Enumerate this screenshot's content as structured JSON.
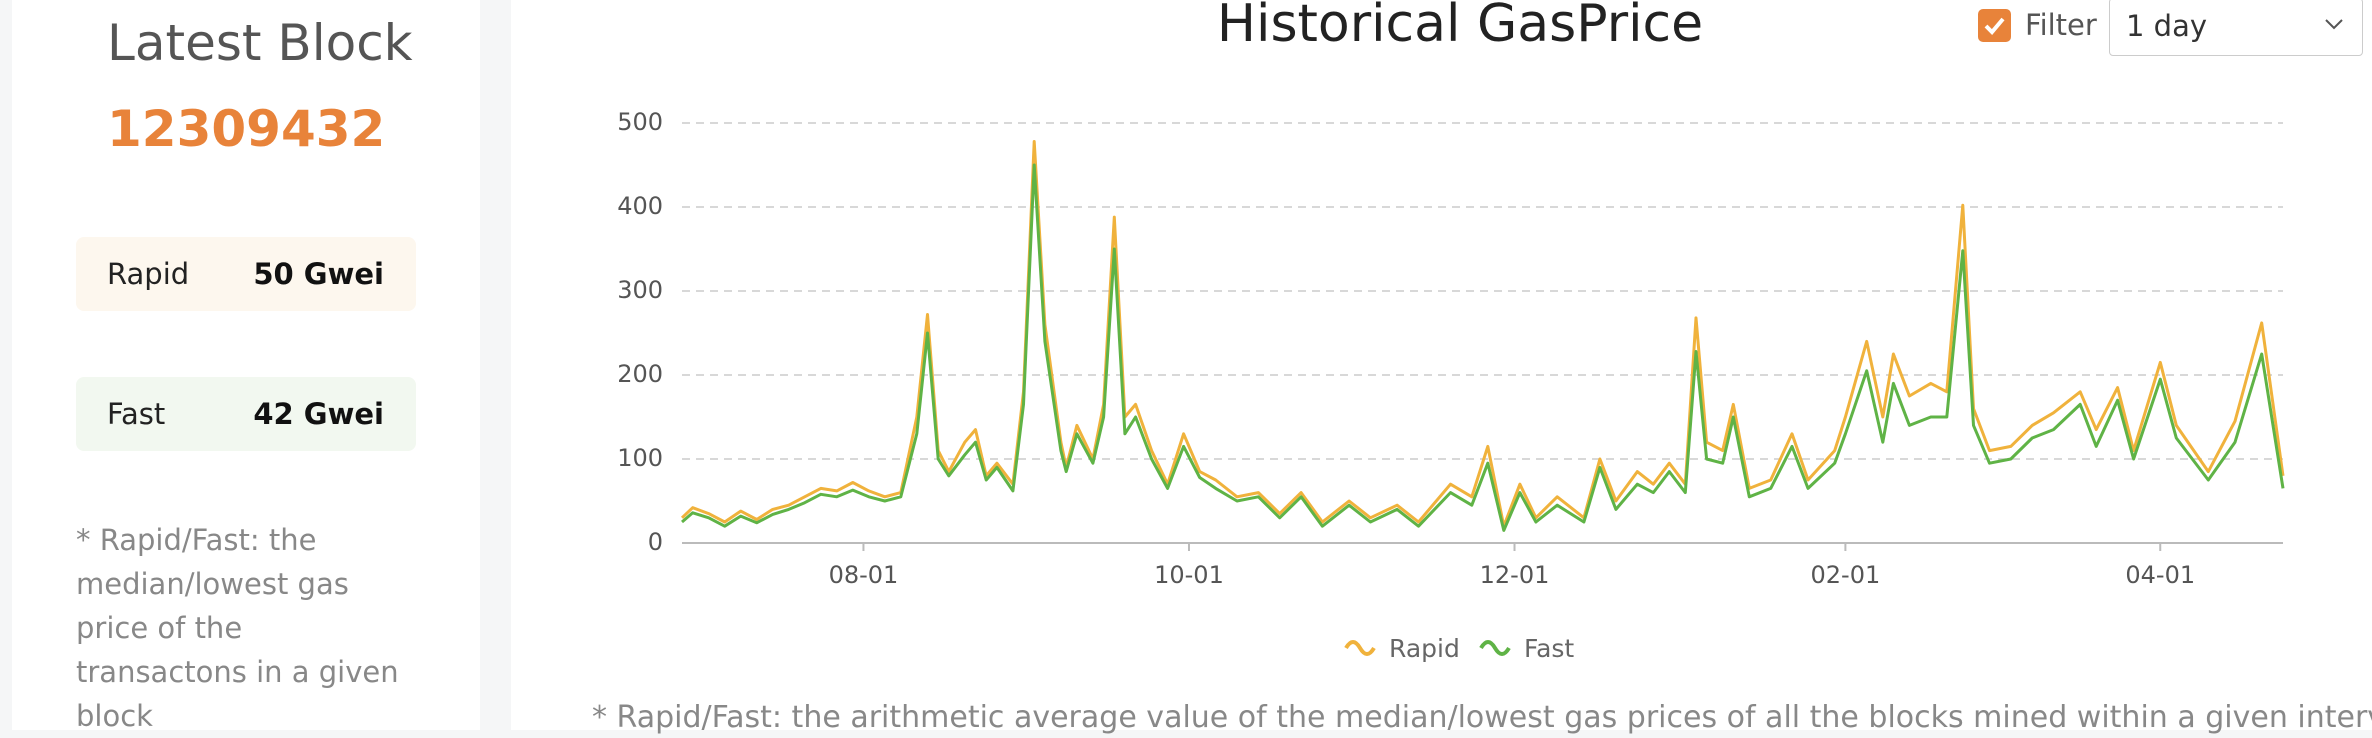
{
  "sidebar": {
    "title": "Latest Block",
    "block": 12309432,
    "cards": [
      {
        "label": "Rapid",
        "value": "50 Gwei"
      },
      {
        "label": "Fast",
        "value": "42 Gwei"
      }
    ],
    "note": "* Rapid/Fast: the median/lowest gas price of the transactons in a given block"
  },
  "controls": {
    "filter": "Filter",
    "interval": "1 day"
  },
  "footnote": "* Rapid/Fast: the arithmetic average value of the median/lowest gas prices of all the blocks mined within a given interval",
  "chart_data": {
    "type": "line",
    "title": "Historical GasPrice",
    "x": [
      "06-28",
      "06-30",
      "07-03",
      "07-06",
      "07-09",
      "07-12",
      "07-15",
      "07-18",
      "07-21",
      "07-24",
      "07-27",
      "07-30",
      "08-02",
      "08-05",
      "08-08",
      "08-11",
      "08-13",
      "08-15",
      "08-17",
      "08-20",
      "08-22",
      "08-24",
      "08-26",
      "08-29",
      "08-31",
      "09-02",
      "09-04",
      "09-07",
      "09-08",
      "09-10",
      "09-13",
      "09-15",
      "09-17",
      "09-19",
      "09-21",
      "09-24",
      "09-27",
      "09-30",
      "10-03",
      "10-06",
      "10-10",
      "10-14",
      "10-18",
      "10-22",
      "10-26",
      "10-31",
      "11-04",
      "11-09",
      "11-13",
      "11-19",
      "11-23",
      "11-26",
      "11-29",
      "12-02",
      "12-05",
      "12-09",
      "12-14",
      "12-17",
      "12-20",
      "12-24",
      "12-27",
      "12-30",
      "01-02",
      "01-04",
      "01-06",
      "01-09",
      "01-11",
      "01-14",
      "01-18",
      "01-22",
      "01-25",
      "01-30",
      "02-01",
      "02-05",
      "02-08",
      "02-10",
      "02-13",
      "02-17",
      "02-20",
      "02-23",
      "02-25",
      "02-28",
      "03-04",
      "03-08",
      "03-12",
      "03-17",
      "03-20",
      "03-24",
      "03-27",
      "04-01",
      "04-04",
      "04-10",
      "04-15",
      "04-20",
      "04-24"
    ],
    "series": [
      {
        "name": "Rapid",
        "color": "#f0b23c",
        "values": [
          30,
          42,
          35,
          25,
          38,
          28,
          40,
          45,
          55,
          65,
          62,
          72,
          62,
          55,
          60,
          150,
          272,
          110,
          85,
          120,
          135,
          80,
          95,
          70,
          180,
          478,
          260,
          120,
          90,
          140,
          100,
          165,
          388,
          150,
          165,
          110,
          70,
          130,
          85,
          75,
          55,
          60,
          35,
          60,
          25,
          50,
          30,
          45,
          25,
          70,
          55,
          115,
          20,
          70,
          30,
          55,
          30,
          100,
          50,
          85,
          70,
          95,
          70,
          268,
          120,
          110,
          165,
          65,
          75,
          130,
          75,
          110,
          150,
          240,
          150,
          225,
          175,
          190,
          180,
          402,
          160,
          110,
          115,
          140,
          155,
          180,
          135,
          185,
          110,
          215,
          140,
          85,
          145,
          262,
          80
        ]
      },
      {
        "name": "Fast",
        "color": "#5fb346",
        "values": [
          25,
          36,
          30,
          20,
          32,
          24,
          34,
          40,
          48,
          58,
          55,
          63,
          55,
          50,
          55,
          130,
          250,
          100,
          80,
          105,
          120,
          75,
          90,
          62,
          165,
          450,
          240,
          110,
          85,
          130,
          95,
          150,
          350,
          130,
          150,
          100,
          65,
          115,
          78,
          65,
          50,
          55,
          30,
          55,
          20,
          45,
          25,
          40,
          20,
          60,
          45,
          95,
          15,
          60,
          25,
          45,
          25,
          90,
          40,
          70,
          60,
          85,
          60,
          228,
          100,
          95,
          150,
          55,
          65,
          115,
          65,
          95,
          130,
          205,
          120,
          190,
          140,
          150,
          150,
          348,
          140,
          95,
          100,
          125,
          135,
          165,
          115,
          170,
          100,
          195,
          125,
          75,
          120,
          225,
          65
        ]
      }
    ],
    "xlim": [
      "06-28",
      "04-24"
    ],
    "xticks": [
      "08-01",
      "10-01",
      "12-01",
      "02-01",
      "04-01"
    ],
    "ylim": [
      0,
      500
    ],
    "yticks": [
      0,
      100,
      200,
      300,
      400,
      500
    ],
    "grid": true
  }
}
